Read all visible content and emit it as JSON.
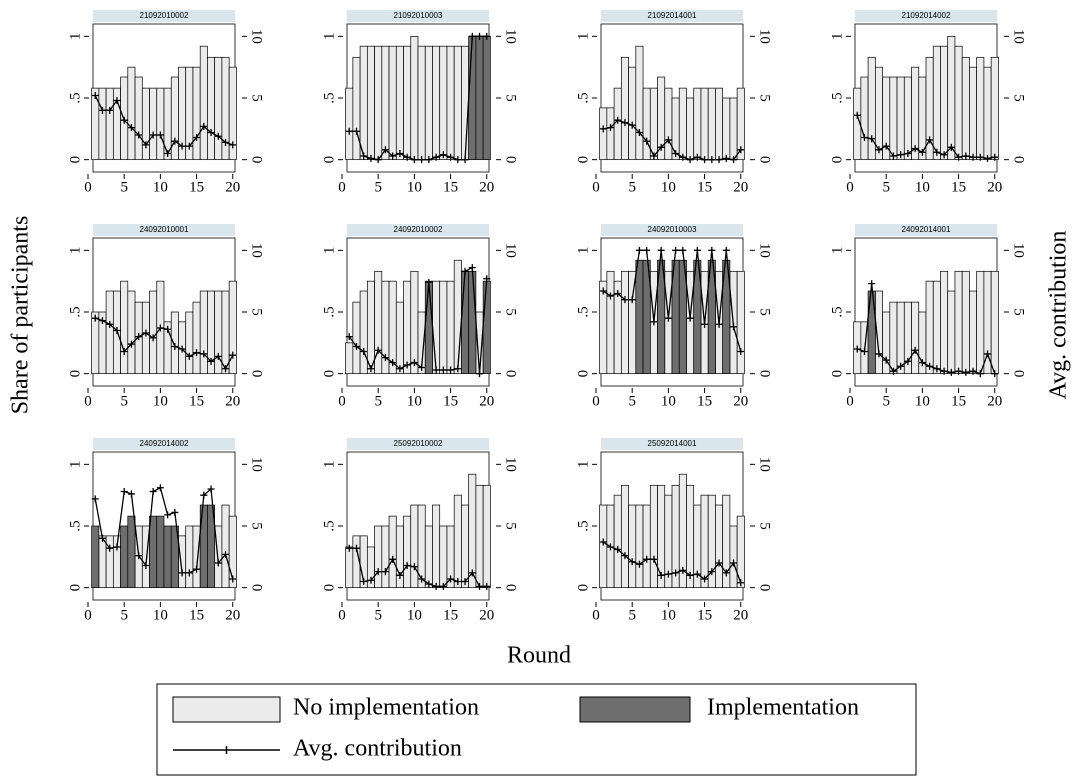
{
  "chart_data": {
    "type": "bar-line-panels",
    "xlabel": "Round",
    "ylabel": "Share of participants",
    "y2label": "Avg. contribution",
    "x": [
      1,
      2,
      3,
      4,
      5,
      6,
      7,
      8,
      9,
      10,
      11,
      12,
      13,
      14,
      15,
      16,
      17,
      18,
      19,
      20
    ],
    "xlim": [
      0,
      21
    ],
    "xticks": [
      0,
      5,
      10,
      15,
      20
    ],
    "ylim": [
      -0.1,
      1.1
    ],
    "yticks": [
      0,
      {
        "value": 0.5,
        "label": ".5"
      },
      1
    ],
    "y2lim": [
      -1,
      11
    ],
    "y2ticks": [
      0,
      5,
      10
    ],
    "series": [
      {
        "name": "No implementation",
        "color": "#ebebeb"
      },
      {
        "name": "Implementation",
        "color": "#6e6e6e"
      },
      {
        "name": "Avg. contribution",
        "color": "#000000",
        "axis": "y2"
      }
    ],
    "panels": [
      {
        "title": "21092010002",
        "series": [
          {
            "values": [
              0.58,
              0.58,
              0.58,
              0.58,
              0.67,
              0.75,
              0.67,
              0.58,
              0.58,
              0.58,
              0.58,
              0.67,
              0.75,
              0.75,
              0.75,
              0.92,
              0.83,
              0.83,
              0.83,
              0.75
            ]
          },
          {
            "values": [
              null,
              null,
              null,
              null,
              null,
              null,
              null,
              null,
              null,
              null,
              null,
              null,
              null,
              null,
              null,
              null,
              null,
              null,
              null,
              null
            ]
          },
          {
            "values": [
              5.2,
              4,
              4,
              4.8,
              3.2,
              2.6,
              2,
              1.2,
              2,
              2,
              0.5,
              1.5,
              1.1,
              1.1,
              1.8,
              2.7,
              2.2,
              1.9,
              1.4,
              1.2
            ]
          }
        ]
      },
      {
        "title": "21092010003",
        "series": [
          {
            "values": [
              0.58,
              0.83,
              0.92,
              0.92,
              0.92,
              0.92,
              0.92,
              0.92,
              0.92,
              1,
              0.92,
              0.92,
              0.92,
              0.92,
              0.92,
              0.92,
              0.92,
              null,
              null,
              null
            ]
          },
          {
            "values": [
              null,
              null,
              null,
              null,
              null,
              null,
              null,
              null,
              null,
              null,
              null,
              null,
              null,
              null,
              null,
              null,
              null,
              1,
              1,
              1
            ]
          },
          {
            "values": [
              2.3,
              2.3,
              0.3,
              0.1,
              0,
              0.8,
              0.3,
              0.5,
              0.2,
              0,
              0,
              0,
              0.2,
              0.4,
              0.2,
              0,
              0,
              10,
              10,
              10
            ]
          }
        ]
      },
      {
        "title": "21092014001",
        "series": [
          {
            "values": [
              0.42,
              0.42,
              0.58,
              0.83,
              0.75,
              0.92,
              0.58,
              0.58,
              0.67,
              0.58,
              0.5,
              0.58,
              0.5,
              0.58,
              0.58,
              0.58,
              0.58,
              0.5,
              0.5,
              0.58
            ]
          },
          {
            "values": [
              null,
              null,
              null,
              null,
              null,
              null,
              null,
              null,
              null,
              null,
              null,
              null,
              null,
              null,
              null,
              null,
              null,
              null,
              null,
              null
            ]
          },
          {
            "values": [
              2.5,
              2.6,
              3.2,
              3,
              2.8,
              2.2,
              1.5,
              0.3,
              1,
              1.6,
              0.5,
              0.2,
              0,
              0.2,
              0,
              0,
              0,
              0.1,
              0,
              0.8
            ]
          }
        ]
      },
      {
        "title": "21092014002",
        "series": [
          {
            "values": [
              0.58,
              0.67,
              0.83,
              0.75,
              0.67,
              0.67,
              0.67,
              0.67,
              0.75,
              0.67,
              0.83,
              0.92,
              0.92,
              1,
              0.92,
              0.83,
              0.75,
              0.83,
              0.75,
              0.83
            ]
          },
          {
            "values": [
              null,
              null,
              null,
              null,
              null,
              null,
              null,
              null,
              null,
              null,
              null,
              null,
              null,
              null,
              null,
              null,
              null,
              null,
              null,
              null
            ]
          },
          {
            "values": [
              3.6,
              1.8,
              1.7,
              0.8,
              1.1,
              0.3,
              0.4,
              0.5,
              0.9,
              0.6,
              1.6,
              0.6,
              0.4,
              1,
              0.2,
              0.3,
              0.2,
              0.2,
              0.1,
              0.2
            ]
          }
        ]
      },
      {
        "title": "24092010001",
        "series": [
          {
            "values": [
              0.5,
              0.5,
              0.67,
              0.67,
              0.75,
              0.67,
              0.58,
              0.58,
              0.67,
              0.75,
              0.42,
              0.5,
              0.42,
              0.5,
              0.58,
              0.67,
              0.67,
              0.67,
              0.67,
              0.75
            ]
          },
          {
            "values": [
              null,
              null,
              null,
              null,
              null,
              null,
              null,
              null,
              null,
              null,
              null,
              null,
              null,
              null,
              null,
              null,
              null,
              null,
              null,
              null
            ]
          },
          {
            "values": [
              4.5,
              4.3,
              4,
              3.5,
              1.8,
              2.4,
              3,
              3.3,
              2.9,
              3.7,
              3.6,
              2.2,
              2,
              1.4,
              1.7,
              1.6,
              1,
              1.4,
              0.4,
              1.5
            ]
          }
        ]
      },
      {
        "title": "24092010002",
        "series": [
          {
            "values": [
              0.25,
              0.58,
              0.67,
              0.75,
              0.83,
              0.75,
              0.75,
              0.58,
              0.75,
              0.83,
              0.5,
              null,
              0.75,
              0.75,
              0.75,
              0.92,
              null,
              null,
              0.5,
              null
            ]
          },
          {
            "values": [
              null,
              null,
              null,
              null,
              null,
              null,
              null,
              null,
              null,
              null,
              null,
              0.75,
              null,
              null,
              null,
              null,
              0.83,
              0.83,
              null,
              0.75
            ]
          },
          {
            "values": [
              3,
              2.2,
              1.8,
              0.4,
              1.9,
              1.3,
              0.9,
              0.4,
              0.7,
              0.9,
              0.5,
              7.4,
              0.3,
              0.3,
              0.3,
              0.4,
              8.3,
              8.6,
              0,
              7.7
            ]
          }
        ]
      },
      {
        "title": "24092010003",
        "series": [
          {
            "values": [
              0.75,
              0.83,
              0.75,
              0.83,
              0.83,
              null,
              null,
              0.83,
              null,
              0.83,
              null,
              null,
              0.83,
              null,
              0.83,
              null,
              0.83,
              null,
              0.83,
              0.83
            ]
          },
          {
            "values": [
              null,
              null,
              null,
              null,
              null,
              0.92,
              0.92,
              null,
              0.92,
              null,
              0.92,
              0.92,
              null,
              0.92,
              null,
              0.92,
              null,
              0.92,
              null,
              null
            ]
          },
          {
            "values": [
              6.7,
              6.3,
              6.5,
              6,
              6,
              10,
              10,
              4.2,
              10,
              4.5,
              10,
              10,
              4.5,
              10,
              4,
              10,
              4,
              10,
              3.8,
              1.8
            ]
          }
        ]
      },
      {
        "title": "24092014001",
        "series": [
          {
            "values": [
              0.42,
              0.42,
              null,
              0.67,
              0.5,
              0.58,
              0.58,
              0.58,
              0.58,
              0.5,
              0.75,
              0.75,
              0.83,
              0.67,
              0.83,
              0.83,
              0.67,
              0.83,
              0.83,
              0.83
            ]
          },
          {
            "values": [
              null,
              null,
              0.67,
              null,
              null,
              null,
              null,
              null,
              null,
              null,
              null,
              null,
              null,
              null,
              null,
              null,
              null,
              null,
              null,
              null
            ]
          },
          {
            "values": [
              2,
              1.8,
              7.3,
              1.6,
              1.1,
              0.2,
              0.6,
              1,
              1.9,
              0.9,
              0.6,
              0.4,
              0.2,
              0.1,
              0.2,
              0.1,
              0.2,
              0,
              1.6,
              0
            ]
          }
        ]
      },
      {
        "title": "24092014002",
        "series": [
          {
            "values": [
              null,
              0.42,
              0.42,
              0.42,
              null,
              null,
              0.5,
              0.5,
              null,
              null,
              null,
              null,
              0.42,
              0.5,
              0.5,
              null,
              null,
              0.5,
              0.67,
              0.58
            ]
          },
          {
            "values": [
              0.5,
              null,
              null,
              null,
              0.5,
              0.58,
              null,
              null,
              0.58,
              0.58,
              0.5,
              0.5,
              null,
              null,
              null,
              0.67,
              0.67,
              null,
              null,
              null
            ]
          },
          {
            "values": [
              7.2,
              4,
              3.2,
              3.3,
              7.8,
              7.6,
              2.6,
              1.8,
              7.8,
              8.1,
              5.9,
              6.1,
              1.2,
              1.2,
              1.5,
              7.5,
              8,
              2,
              2.7,
              0.7
            ]
          }
        ]
      },
      {
        "title": "25092010002",
        "series": [
          {
            "values": [
              0.33,
              0.42,
              0.42,
              0.33,
              0.5,
              0.5,
              0.58,
              0.5,
              0.58,
              0.67,
              0.67,
              0.5,
              0.67,
              0.5,
              0.5,
              0.75,
              0.67,
              0.92,
              0.83,
              0.83
            ]
          },
          {
            "values": [
              null,
              null,
              null,
              null,
              null,
              null,
              null,
              null,
              null,
              null,
              null,
              null,
              null,
              null,
              null,
              null,
              null,
              null,
              null,
              null
            ]
          },
          {
            "values": [
              3.2,
              3.2,
              0.5,
              0.6,
              1.3,
              1.3,
              2.3,
              1,
              1.8,
              1.7,
              0.7,
              0.3,
              0.1,
              0.1,
              0.7,
              0.5,
              0.5,
              1.2,
              0.1,
              0.1
            ]
          }
        ]
      },
      {
        "title": "25092014001",
        "series": [
          {
            "values": [
              0.67,
              0.67,
              0.75,
              0.83,
              0.67,
              0.67,
              0.67,
              0.83,
              0.83,
              0.75,
              0.83,
              0.92,
              0.83,
              0.67,
              0.75,
              0.75,
              0.67,
              0.75,
              0.5,
              0.58
            ]
          },
          {
            "values": [
              null,
              null,
              null,
              null,
              null,
              null,
              null,
              null,
              null,
              null,
              null,
              null,
              null,
              null,
              null,
              null,
              null,
              null,
              null,
              null
            ]
          },
          {
            "values": [
              3.7,
              3.3,
              3.1,
              2.6,
              2.1,
              1.9,
              2.3,
              2.3,
              1,
              1.1,
              1.2,
              1.4,
              1,
              1.1,
              0.7,
              1.3,
              2,
              1.2,
              2,
              0.4
            ]
          }
        ]
      }
    ]
  }
}
